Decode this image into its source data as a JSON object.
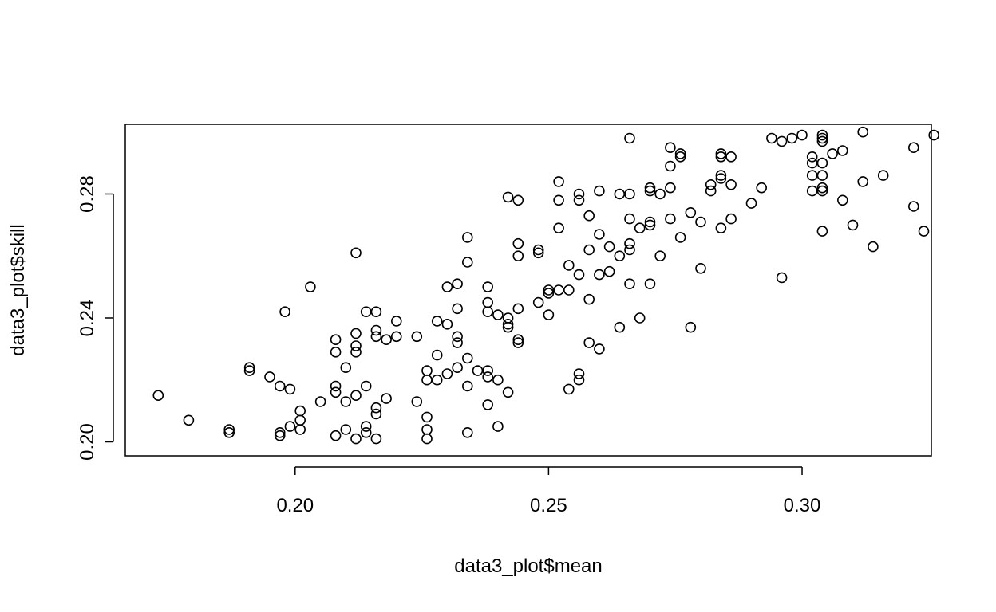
{
  "chart_data": {
    "type": "scatter",
    "title": "",
    "xlabel": "data3_plot$mean",
    "ylabel": "data3_plot$skill",
    "xlim": [
      0.1665,
      0.3255
    ],
    "ylim": [
      0.1955,
      0.3025
    ],
    "xticks": [
      0.2,
      0.25,
      0.3
    ],
    "xtick_labels": [
      "0.20",
      "0.25",
      "0.30"
    ],
    "yticks": [
      0.2,
      0.24,
      0.28
    ],
    "ytick_labels": [
      "0.20",
      "0.24",
      "0.28"
    ],
    "grid": false,
    "legend": "none",
    "marker": "open-circle",
    "marker_color": "#000000",
    "points": [
      [
        0.173,
        0.215
      ],
      [
        0.179,
        0.207
      ],
      [
        0.187,
        0.204
      ],
      [
        0.187,
        0.203
      ],
      [
        0.191,
        0.224
      ],
      [
        0.191,
        0.223
      ],
      [
        0.195,
        0.221
      ],
      [
        0.197,
        0.218
      ],
      [
        0.197,
        0.202
      ],
      [
        0.197,
        0.203
      ],
      [
        0.198,
        0.242
      ],
      [
        0.199,
        0.217
      ],
      [
        0.199,
        0.205
      ],
      [
        0.201,
        0.21
      ],
      [
        0.201,
        0.207
      ],
      [
        0.201,
        0.204
      ],
      [
        0.203,
        0.25
      ],
      [
        0.205,
        0.213
      ],
      [
        0.208,
        0.233
      ],
      [
        0.208,
        0.229
      ],
      [
        0.208,
        0.218
      ],
      [
        0.208,
        0.216
      ],
      [
        0.208,
        0.202
      ],
      [
        0.21,
        0.224
      ],
      [
        0.21,
        0.213
      ],
      [
        0.21,
        0.204
      ],
      [
        0.212,
        0.261
      ],
      [
        0.212,
        0.235
      ],
      [
        0.212,
        0.231
      ],
      [
        0.212,
        0.229
      ],
      [
        0.212,
        0.215
      ],
      [
        0.212,
        0.201
      ],
      [
        0.214,
        0.242
      ],
      [
        0.214,
        0.218
      ],
      [
        0.214,
        0.205
      ],
      [
        0.214,
        0.203
      ],
      [
        0.216,
        0.242
      ],
      [
        0.216,
        0.236
      ],
      [
        0.216,
        0.234
      ],
      [
        0.216,
        0.211
      ],
      [
        0.216,
        0.209
      ],
      [
        0.216,
        0.201
      ],
      [
        0.218,
        0.233
      ],
      [
        0.218,
        0.214
      ],
      [
        0.22,
        0.239
      ],
      [
        0.22,
        0.234
      ],
      [
        0.224,
        0.234
      ],
      [
        0.224,
        0.213
      ],
      [
        0.226,
        0.223
      ],
      [
        0.226,
        0.22
      ],
      [
        0.226,
        0.208
      ],
      [
        0.226,
        0.204
      ],
      [
        0.226,
        0.201
      ],
      [
        0.228,
        0.239
      ],
      [
        0.228,
        0.228
      ],
      [
        0.228,
        0.22
      ],
      [
        0.23,
        0.25
      ],
      [
        0.23,
        0.238
      ],
      [
        0.23,
        0.222
      ],
      [
        0.232,
        0.251
      ],
      [
        0.232,
        0.243
      ],
      [
        0.232,
        0.234
      ],
      [
        0.232,
        0.232
      ],
      [
        0.232,
        0.224
      ],
      [
        0.234,
        0.266
      ],
      [
        0.234,
        0.258
      ],
      [
        0.234,
        0.227
      ],
      [
        0.234,
        0.218
      ],
      [
        0.234,
        0.203
      ],
      [
        0.236,
        0.223
      ],
      [
        0.238,
        0.25
      ],
      [
        0.238,
        0.245
      ],
      [
        0.238,
        0.242
      ],
      [
        0.238,
        0.223
      ],
      [
        0.238,
        0.221
      ],
      [
        0.238,
        0.212
      ],
      [
        0.24,
        0.241
      ],
      [
        0.24,
        0.22
      ],
      [
        0.24,
        0.205
      ],
      [
        0.242,
        0.279
      ],
      [
        0.242,
        0.24
      ],
      [
        0.242,
        0.238
      ],
      [
        0.242,
        0.237
      ],
      [
        0.242,
        0.216
      ],
      [
        0.244,
        0.278
      ],
      [
        0.244,
        0.264
      ],
      [
        0.244,
        0.26
      ],
      [
        0.244,
        0.243
      ],
      [
        0.244,
        0.233
      ],
      [
        0.244,
        0.232
      ],
      [
        0.248,
        0.262
      ],
      [
        0.248,
        0.261
      ],
      [
        0.248,
        0.245
      ],
      [
        0.25,
        0.249
      ],
      [
        0.25,
        0.248
      ],
      [
        0.25,
        0.241
      ],
      [
        0.252,
        0.284
      ],
      [
        0.252,
        0.278
      ],
      [
        0.252,
        0.269
      ],
      [
        0.252,
        0.249
      ],
      [
        0.254,
        0.257
      ],
      [
        0.254,
        0.249
      ],
      [
        0.254,
        0.217
      ],
      [
        0.256,
        0.28
      ],
      [
        0.256,
        0.278
      ],
      [
        0.256,
        0.254
      ],
      [
        0.256,
        0.222
      ],
      [
        0.256,
        0.22
      ],
      [
        0.258,
        0.273
      ],
      [
        0.258,
        0.262
      ],
      [
        0.258,
        0.246
      ],
      [
        0.258,
        0.232
      ],
      [
        0.26,
        0.281
      ],
      [
        0.26,
        0.267
      ],
      [
        0.26,
        0.254
      ],
      [
        0.26,
        0.23
      ],
      [
        0.262,
        0.263
      ],
      [
        0.262,
        0.255
      ],
      [
        0.264,
        0.28
      ],
      [
        0.264,
        0.26
      ],
      [
        0.264,
        0.237
      ],
      [
        0.266,
        0.298
      ],
      [
        0.266,
        0.28
      ],
      [
        0.266,
        0.272
      ],
      [
        0.266,
        0.264
      ],
      [
        0.266,
        0.262
      ],
      [
        0.266,
        0.251
      ],
      [
        0.268,
        0.269
      ],
      [
        0.268,
        0.24
      ],
      [
        0.27,
        0.282
      ],
      [
        0.27,
        0.281
      ],
      [
        0.27,
        0.271
      ],
      [
        0.27,
        0.27
      ],
      [
        0.27,
        0.251
      ],
      [
        0.272,
        0.28
      ],
      [
        0.272,
        0.26
      ],
      [
        0.274,
        0.295
      ],
      [
        0.274,
        0.289
      ],
      [
        0.274,
        0.282
      ],
      [
        0.274,
        0.272
      ],
      [
        0.276,
        0.293
      ],
      [
        0.276,
        0.292
      ],
      [
        0.276,
        0.266
      ],
      [
        0.278,
        0.274
      ],
      [
        0.278,
        0.237
      ],
      [
        0.28,
        0.271
      ],
      [
        0.28,
        0.256
      ],
      [
        0.282,
        0.283
      ],
      [
        0.282,
        0.281
      ],
      [
        0.284,
        0.293
      ],
      [
        0.284,
        0.292
      ],
      [
        0.284,
        0.286
      ],
      [
        0.284,
        0.285
      ],
      [
        0.284,
        0.269
      ],
      [
        0.286,
        0.292
      ],
      [
        0.286,
        0.283
      ],
      [
        0.286,
        0.272
      ],
      [
        0.29,
        0.277
      ],
      [
        0.292,
        0.282
      ],
      [
        0.294,
        0.298
      ],
      [
        0.296,
        0.297
      ],
      [
        0.296,
        0.253
      ],
      [
        0.298,
        0.298
      ],
      [
        0.3,
        0.299
      ],
      [
        0.302,
        0.292
      ],
      [
        0.302,
        0.29
      ],
      [
        0.302,
        0.286
      ],
      [
        0.302,
        0.281
      ],
      [
        0.304,
        0.299
      ],
      [
        0.304,
        0.298
      ],
      [
        0.304,
        0.297
      ],
      [
        0.304,
        0.29
      ],
      [
        0.304,
        0.286
      ],
      [
        0.304,
        0.282
      ],
      [
        0.304,
        0.281
      ],
      [
        0.304,
        0.268
      ],
      [
        0.306,
        0.293
      ],
      [
        0.308,
        0.294
      ],
      [
        0.308,
        0.278
      ],
      [
        0.31,
        0.27
      ],
      [
        0.312,
        0.3
      ],
      [
        0.312,
        0.284
      ],
      [
        0.314,
        0.263
      ],
      [
        0.316,
        0.286
      ],
      [
        0.322,
        0.295
      ],
      [
        0.322,
        0.276
      ],
      [
        0.324,
        0.268
      ],
      [
        0.326,
        0.299
      ]
    ]
  }
}
